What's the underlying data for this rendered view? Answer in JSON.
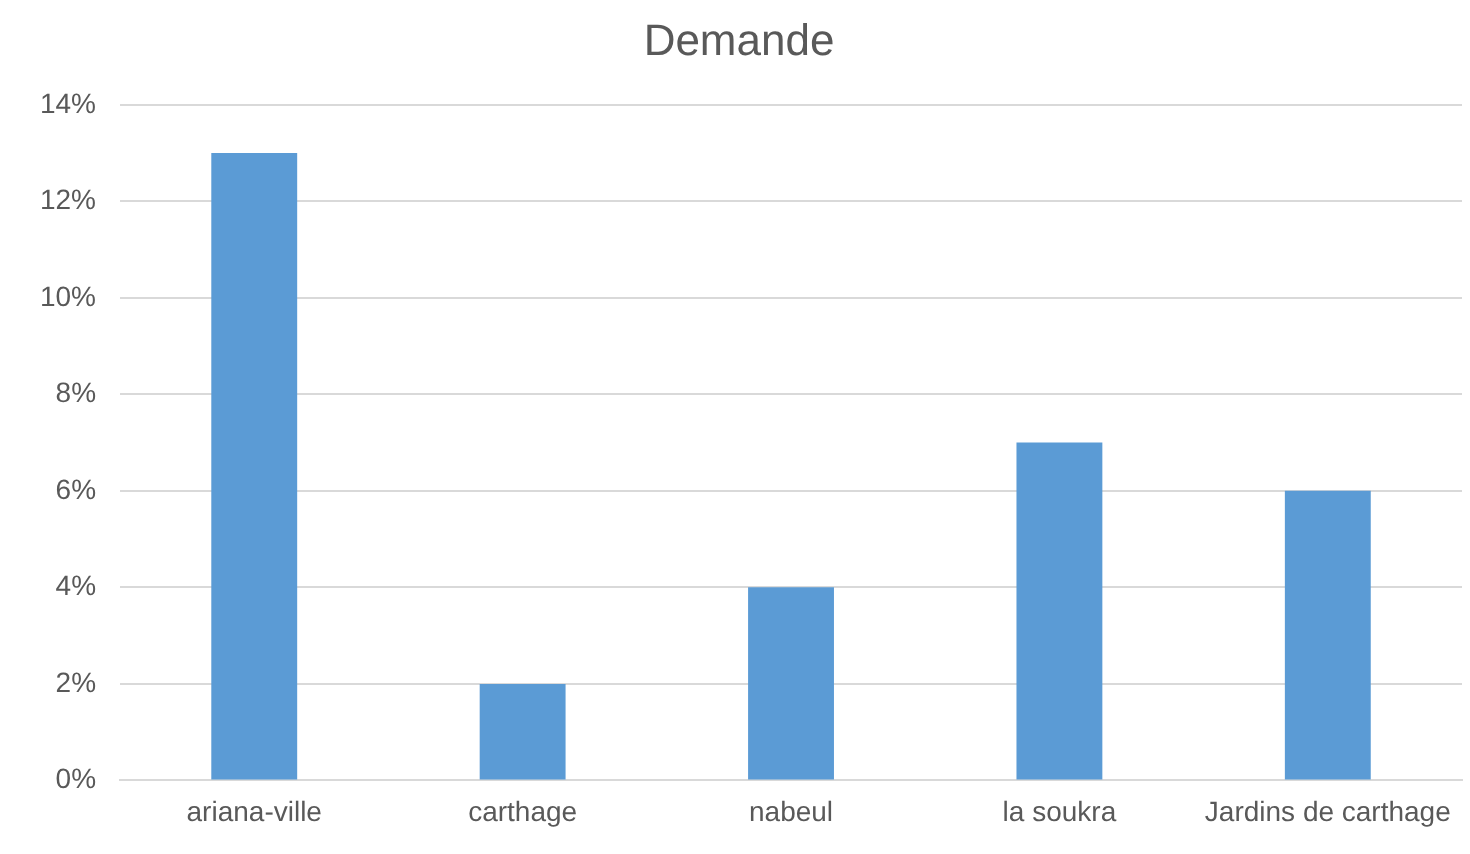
{
  "chart_data": {
    "type": "bar",
    "title": "Demande",
    "categories": [
      "ariana-ville",
      "carthage",
      "nabeul",
      "la soukra",
      "Jardins de carthage"
    ],
    "values": [
      13,
      2,
      4,
      7,
      6
    ],
    "color": "#5b9bd5",
    "ylim": [
      0,
      14
    ],
    "yticks": [
      {
        "value": 0,
        "label": "0%"
      },
      {
        "value": 2,
        "label": "2%"
      },
      {
        "value": 4,
        "label": "4%"
      },
      {
        "value": 6,
        "label": "6%"
      },
      {
        "value": 8,
        "label": "8%"
      },
      {
        "value": 10,
        "label": "10%"
      },
      {
        "value": 12,
        "label": "12%"
      },
      {
        "value": 14,
        "label": "14%"
      }
    ],
    "grid": "y",
    "legend": false
  }
}
